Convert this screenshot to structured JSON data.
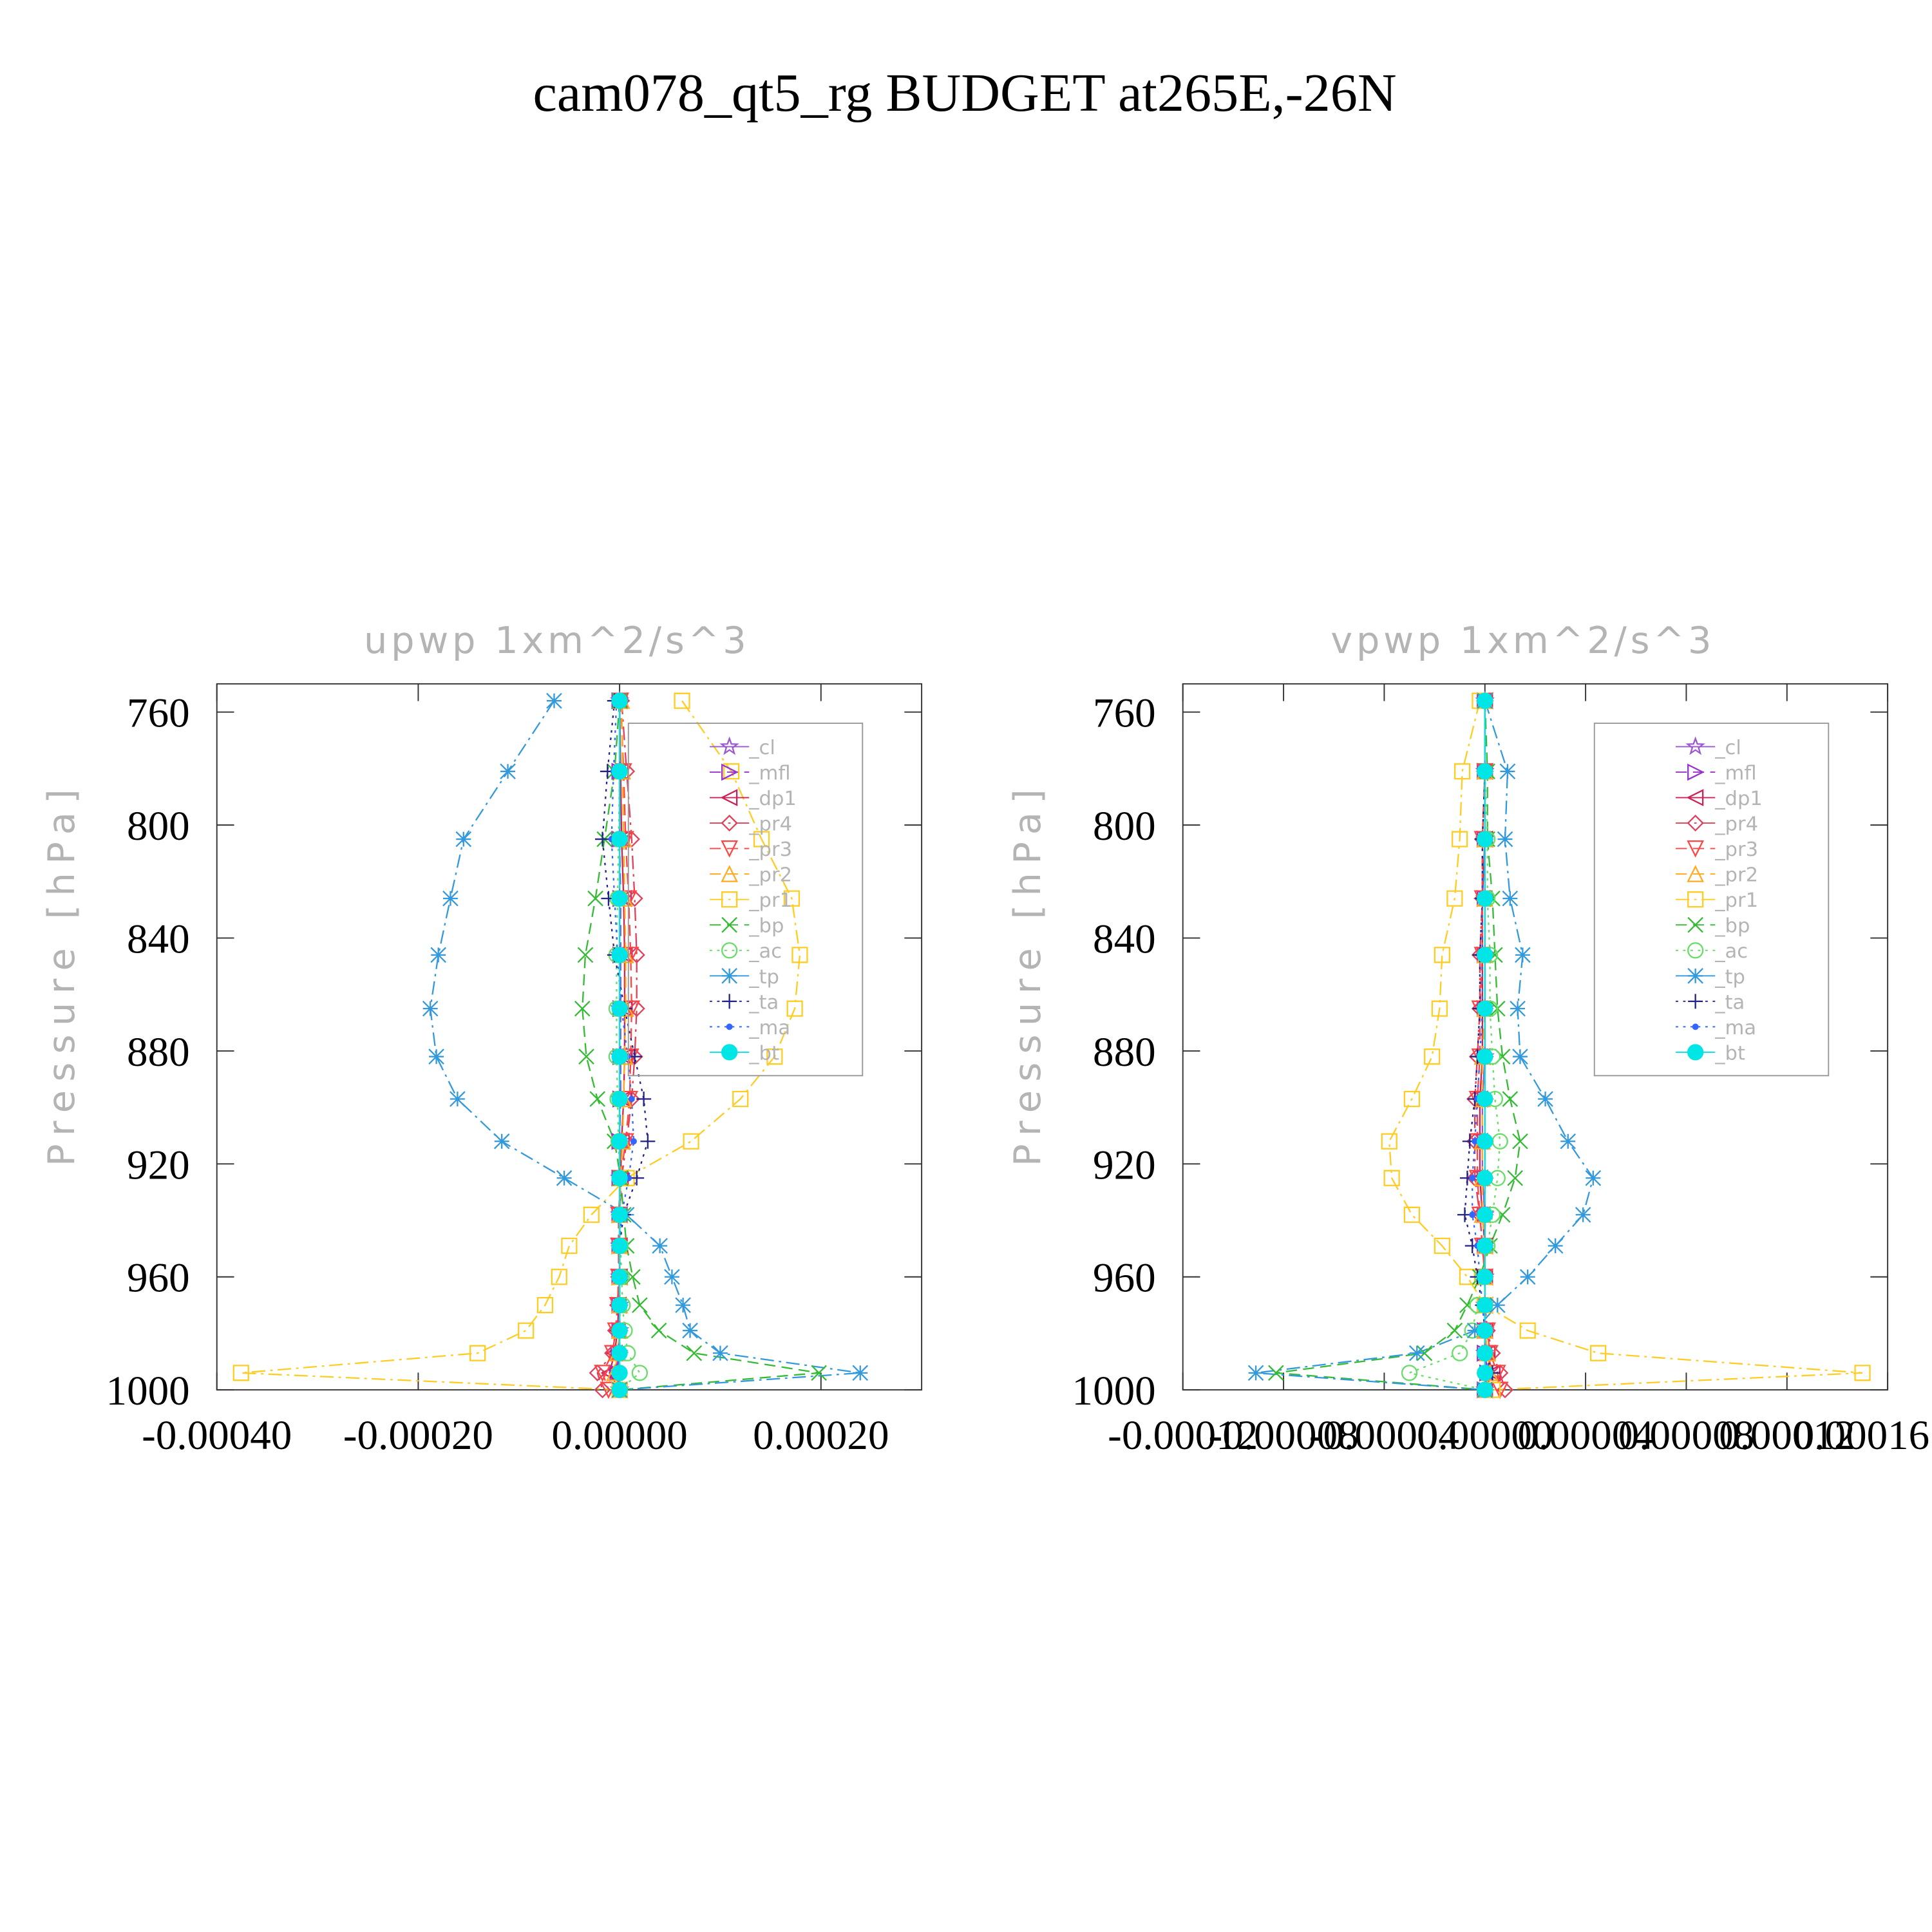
{
  "title": "cam078_qt5_rg  BUDGET at265E,-26N",
  "chart_data": [
    {
      "type": "line",
      "title": "upwp    1xm^2/s^3",
      "y_label": "Pressure [hPa]",
      "legend": "upper right",
      "y": [
        756,
        781,
        805,
        826,
        846,
        865,
        882,
        897,
        912,
        925,
        938,
        949,
        960,
        970,
        979,
        987,
        994,
        1000
      ],
      "xlim": [
        -0.0004,
        0.0003
      ],
      "xticks": [
        {
          "value": -0.0004,
          "label": "-0.00040"
        },
        {
          "value": -0.0002,
          "label": "-0.00020"
        },
        {
          "value": 0,
          "label": "0.00000"
        },
        {
          "value": 0.0002,
          "label": "0.00020"
        }
      ],
      "ylim": [
        1000,
        750
      ],
      "yticks": [
        760,
        800,
        840,
        880,
        920,
        960,
        1000
      ],
      "series": [
        {
          "name": "_cl",
          "color": "#9b59d0",
          "marker": "star",
          "dash": "solid",
          "values": [
            0,
            0,
            0,
            0,
            0,
            0,
            0,
            0,
            0,
            0,
            0,
            0,
            0,
            0,
            0,
            -1e-06,
            -3e-06,
            0
          ]
        },
        {
          "name": "_mfl",
          "color": "#9933cc",
          "marker": "triangle-right",
          "dash": "dashed",
          "values": [
            0,
            0,
            0,
            1e-06,
            1e-06,
            1e-06,
            1e-06,
            1e-06,
            0,
            0,
            0,
            0,
            0,
            0,
            0,
            -1e-06,
            -2e-06,
            0
          ]
        },
        {
          "name": "_dp1",
          "color": "#cc2255",
          "marker": "triangle-left",
          "dash": "solid",
          "values": [
            0,
            1e-06,
            2e-06,
            4e-06,
            5e-06,
            5e-06,
            5e-06,
            4e-06,
            2e-06,
            1e-06,
            0,
            0,
            0,
            -1e-06,
            -2e-06,
            -5e-06,
            -1e-05,
            0
          ]
        },
        {
          "name": "_pr4",
          "color": "#e0405a",
          "marker": "diamond",
          "dash": "dashdot",
          "values": [
            2e-06,
            7e-06,
            1.2e-05,
            1.5e-05,
            1.7e-05,
            1.7e-05,
            1.5e-05,
            1.2e-05,
            7e-06,
            2e-06,
            0,
            0,
            -1e-06,
            -2e-06,
            -4e-06,
            -7e-06,
            -2.2e-05,
            -1.7e-05
          ]
        },
        {
          "name": "_pr3",
          "color": "#ff4444",
          "marker": "triangle-down",
          "dash": "dashed",
          "values": [
            1e-06,
            4e-06,
            6e-06,
            9e-06,
            1.1e-05,
            1.2e-05,
            1.1e-05,
            1e-05,
            6e-06,
            1e-06,
            -1e-06,
            -1e-06,
            -1e-06,
            -2e-06,
            -4e-06,
            -7e-06,
            -1.7e-05,
            -1.1e-05
          ]
        },
        {
          "name": "_pr2",
          "color": "#ffaa22",
          "marker": "triangle-up",
          "dash": "dashed",
          "values": [
            2e-06,
            3e-06,
            4e-06,
            5e-06,
            6e-06,
            6e-06,
            5e-06,
            4e-06,
            3e-06,
            1e-06,
            0,
            0,
            0,
            0,
            0,
            -2e-06,
            -5e-06,
            0
          ]
        },
        {
          "name": "_pr1",
          "color": "#ffcc22",
          "marker": "square",
          "dash": "dashdot",
          "values": [
            6.2e-05,
            0.000111,
            0.000141,
            0.000171,
            0.000179,
            0.000174,
            0.000154,
            0.00012,
            7.1e-05,
            7e-06,
            -2.8e-05,
            -5e-05,
            -6e-05,
            -7.4e-05,
            -9.3e-05,
            -0.000141,
            -0.000376,
            0
          ]
        },
        {
          "name": "_bp",
          "color": "#33bb33",
          "marker": "x",
          "dash": "dashed",
          "values": [
            0,
            -5e-06,
            -1.5e-05,
            -2.4e-05,
            -3.4e-05,
            -3.7e-05,
            -3.3e-05,
            -2.2e-05,
            -5e-06,
            1e-06,
            4e-06,
            7e-06,
            1.3e-05,
            2e-05,
            3.9e-05,
            7.4e-05,
            0.000198,
            0
          ]
        },
        {
          "name": "_ac",
          "color": "#66dd66",
          "marker": "circle",
          "dash": "dotted",
          "values": [
            0,
            0,
            -1e-06,
            -2e-06,
            -3e-06,
            -3e-06,
            -3e-06,
            -2e-06,
            -1e-06,
            0,
            1e-06,
            1e-06,
            2e-06,
            3e-06,
            5e-06,
            8e-06,
            2e-05,
            0
          ]
        },
        {
          "name": "_tp",
          "color": "#3399dd",
          "marker": "asterisk",
          "dash": "dashdot",
          "values": [
            -6.5e-05,
            -0.000111,
            -0.000155,
            -0.000168,
            -0.00018,
            -0.000188,
            -0.000182,
            -0.000161,
            -0.000117,
            -5.5e-05,
            7e-06,
            4e-05,
            5.2e-05,
            6.3e-05,
            7e-05,
            0.0001,
            0.000239,
            0
          ]
        },
        {
          "name": "_ta",
          "color": "#222288",
          "marker": "plus",
          "dash": "dotted",
          "values": [
            -5e-06,
            -1.2e-05,
            -1.7e-05,
            -1.1e-05,
            -5e-06,
            5e-06,
            1.5e-05,
            2.4e-05,
            2.8e-05,
            1.7e-05,
            4e-06,
            0,
            0,
            0,
            0,
            0,
            0,
            0
          ]
        },
        {
          "name": "_ma",
          "color": "#3366ff",
          "marker": "dot",
          "dash": "dotted",
          "values": [
            -3e-06,
            -6e-06,
            -8e-06,
            -5e-06,
            -2e-06,
            2e-06,
            8e-06,
            1.2e-05,
            1.4e-05,
            9e-06,
            2e-06,
            0,
            0,
            0,
            0,
            0,
            0,
            0
          ]
        },
        {
          "name": "_bt",
          "color": "#00e5e5",
          "marker": "filled-circle",
          "dash": "solid",
          "values": [
            0,
            0,
            0,
            0,
            0,
            0,
            0,
            0,
            0,
            0,
            0,
            0,
            0,
            0,
            0,
            0,
            0,
            0
          ]
        }
      ]
    },
    {
      "type": "line",
      "title": "vpwp    1xm^2/s^3",
      "y_label": "Pressure [hPa]",
      "legend": "upper right",
      "y": [
        756,
        781,
        805,
        826,
        846,
        865,
        882,
        897,
        912,
        925,
        938,
        949,
        960,
        970,
        979,
        987,
        994,
        1000
      ],
      "xlim": [
        -0.00012,
        0.00016
      ],
      "xticks": [
        {
          "value": -0.00012,
          "label": "-0.00012"
        },
        {
          "value": -8e-05,
          "label": "-0.00008"
        },
        {
          "value": -4e-05,
          "label": "-0.00004"
        },
        {
          "value": 0,
          "label": "0.00000"
        },
        {
          "value": 4e-05,
          "label": "0.00004"
        },
        {
          "value": 8e-05,
          "label": "0.00008"
        },
        {
          "value": 0.00012,
          "label": "0.00012"
        },
        {
          "value": 0.00016,
          "label": "0.00016"
        }
      ],
      "ylim": [
        1000,
        750
      ],
      "yticks": [
        760,
        800,
        840,
        880,
        920,
        960,
        1000
      ],
      "series": [
        {
          "name": "_cl",
          "color": "#9b59d0",
          "marker": "star",
          "dash": "solid",
          "values": [
            0,
            0,
            0,
            0,
            0,
            0,
            0,
            -1e-06,
            -1e-06,
            -1e-06,
            0,
            0,
            0,
            0,
            0,
            0,
            1e-06,
            0
          ]
        },
        {
          "name": "_mfl",
          "color": "#9933cc",
          "marker": "triangle-right",
          "dash": "dashed",
          "values": [
            0,
            0,
            0,
            0,
            0,
            0,
            0,
            0,
            0,
            0,
            0,
            0,
            0,
            0,
            0,
            0,
            1e-06,
            0
          ]
        },
        {
          "name": "_dp1",
          "color": "#cc2255",
          "marker": "triangle-left",
          "dash": "solid",
          "values": [
            0,
            0,
            0,
            -1e-06,
            -1e-06,
            -1e-06,
            -1e-06,
            -2e-06,
            -2e-06,
            -2e-06,
            -1e-06,
            0,
            0,
            0,
            0,
            1e-06,
            3e-06,
            0
          ]
        },
        {
          "name": "_pr4",
          "color": "#e0405a",
          "marker": "diamond",
          "dash": "dashdot",
          "values": [
            0,
            0,
            -1e-06,
            -1e-06,
            -2e-06,
            -2e-06,
            -3e-06,
            -4e-06,
            -4e-06,
            -4e-06,
            -2e-06,
            -1e-06,
            0,
            0,
            1e-06,
            3e-06,
            6e-06,
            8e-06
          ]
        },
        {
          "name": "_pr3",
          "color": "#ff4444",
          "marker": "triangle-down",
          "dash": "dashed",
          "values": [
            0,
            0,
            -1e-06,
            -1e-06,
            -1e-06,
            -2e-06,
            -2e-06,
            -3e-06,
            -3e-06,
            -3e-06,
            -2e-06,
            -1e-06,
            0,
            0,
            1e-06,
            2e-06,
            5e-06,
            6e-06
          ]
        },
        {
          "name": "_pr2",
          "color": "#ffaa22",
          "marker": "triangle-up",
          "dash": "dashed",
          "values": [
            0,
            0,
            0,
            0,
            0,
            0,
            -1e-06,
            -1e-06,
            -1e-06,
            -1e-06,
            -1e-06,
            0,
            0,
            0,
            0,
            1e-06,
            2e-06,
            0
          ]
        },
        {
          "name": "_pr1",
          "color": "#ffcc22",
          "marker": "square",
          "dash": "dashdot",
          "values": [
            -2e-06,
            -9e-06,
            -1e-05,
            -1.2e-05,
            -1.7e-05,
            -1.8e-05,
            -2.1e-05,
            -2.9e-05,
            -3.8e-05,
            -3.7e-05,
            -2.9e-05,
            -1.7e-05,
            -7e-06,
            0,
            1.7e-05,
            4.5e-05,
            0.00015,
            3e-06
          ]
        },
        {
          "name": "_bp",
          "color": "#33bb33",
          "marker": "x",
          "dash": "dashed",
          "values": [
            0,
            1e-06,
            1e-06,
            3e-06,
            4e-06,
            5e-06,
            7e-06,
            1e-05,
            1.4e-05,
            1.2e-05,
            7e-06,
            2e-06,
            -2e-06,
            -7e-06,
            -1.2e-05,
            -2.4e-05,
            -8.3e-05,
            0
          ]
        },
        {
          "name": "_ac",
          "color": "#66dd66",
          "marker": "circle",
          "dash": "dotted",
          "values": [
            0,
            0,
            1e-06,
            1e-06,
            2e-06,
            2e-06,
            3e-06,
            4e-06,
            6e-06,
            5e-06,
            3e-06,
            1e-06,
            -1e-06,
            -3e-06,
            -5e-06,
            -1e-05,
            -3e-05,
            0
          ]
        },
        {
          "name": "_tp",
          "color": "#3399dd",
          "marker": "asterisk",
          "dash": "dashdot",
          "values": [
            0,
            9e-06,
            8e-06,
            1e-05,
            1.5e-05,
            1.3e-05,
            1.4e-05,
            2.4e-05,
            3.3e-05,
            4.3e-05,
            3.9e-05,
            2.8e-05,
            1.7e-05,
            5e-06,
            -4e-06,
            -2.7e-05,
            -9.1e-05,
            0
          ]
        },
        {
          "name": "_ta",
          "color": "#222288",
          "marker": "plus",
          "dash": "dotted",
          "values": [
            0,
            0,
            -1e-06,
            -1e-06,
            -2e-06,
            -2e-06,
            -3e-06,
            -4e-06,
            -6e-06,
            -7e-06,
            -8e-06,
            -5e-06,
            -3e-06,
            -1e-06,
            0,
            0,
            3e-06,
            0
          ]
        },
        {
          "name": "_ma",
          "color": "#3366ff",
          "marker": "dot",
          "dash": "dotted",
          "values": [
            0,
            0,
            0,
            -1e-06,
            -1e-06,
            -1e-06,
            -2e-06,
            -3e-06,
            -4e-06,
            -5e-06,
            -5e-06,
            -3e-06,
            -2e-06,
            -1e-06,
            0,
            0,
            2e-06,
            0
          ]
        },
        {
          "name": "_bt",
          "color": "#00e5e5",
          "marker": "filled-circle",
          "dash": "solid",
          "values": [
            0,
            0,
            0,
            0,
            0,
            0,
            0,
            0,
            0,
            0,
            0,
            0,
            0,
            0,
            0,
            0,
            0,
            0
          ]
        }
      ]
    }
  ]
}
